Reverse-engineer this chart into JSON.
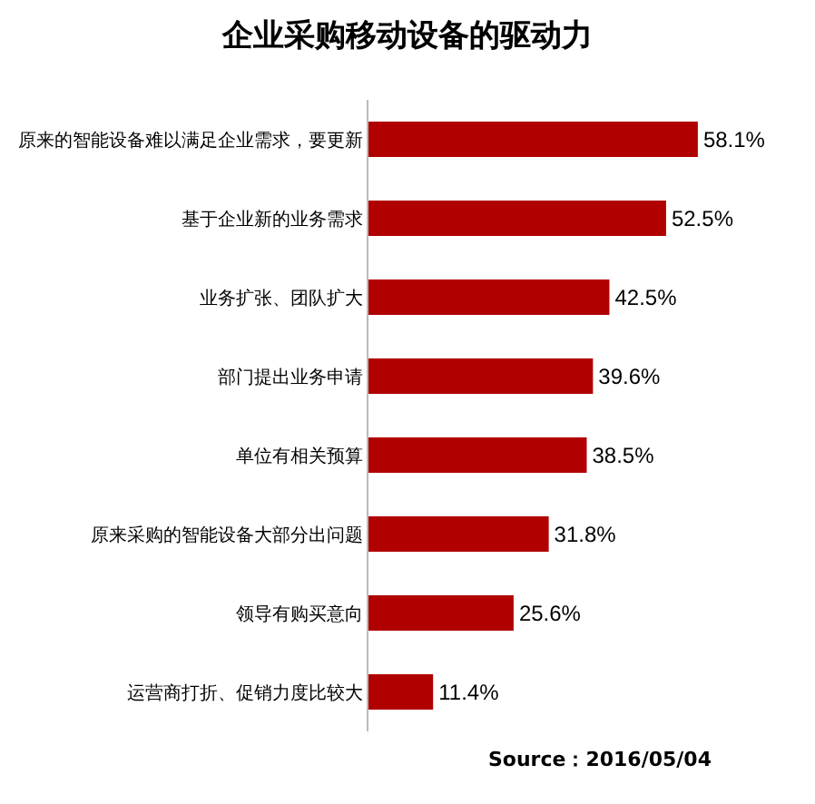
{
  "chart_data": {
    "type": "bar",
    "orientation": "horizontal",
    "title": "企业采购移动设备的驱动力",
    "categories": [
      "原来的智能设备难以满足企业需求，要更新",
      "基于企业新的业务需求",
      "业务扩张、团队扩大",
      "部门提出业务申请",
      "单位有相关预算",
      "原来采购的智能设备大部分出问题",
      "领导有购买意向",
      "运营商打折、促销力度比较大"
    ],
    "values": [
      58.1,
      52.5,
      42.5,
      39.6,
      38.5,
      31.8,
      25.6,
      11.4
    ],
    "value_labels": [
      "58.1%",
      "52.5%",
      "42.5%",
      "39.6%",
      "38.5%",
      "31.8%",
      "25.6%",
      "11.4%"
    ],
    "color": "#b00000",
    "annotations": [
      "Source：2016/05/04"
    ]
  }
}
